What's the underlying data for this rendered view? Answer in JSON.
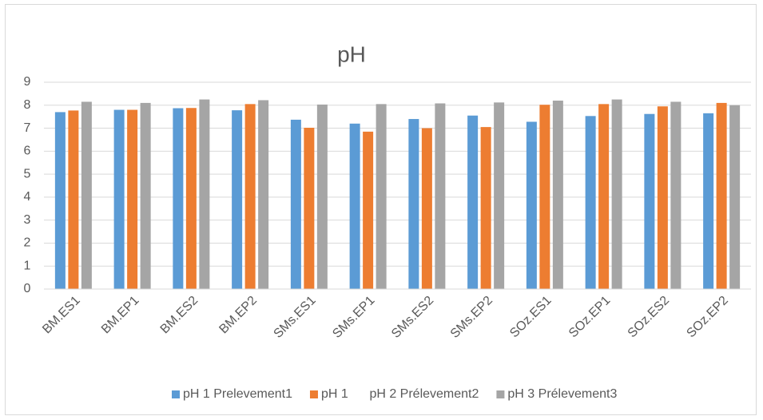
{
  "chart_data": {
    "type": "bar",
    "title": "pH",
    "categories": [
      "BM.ES1",
      "BM.EP1",
      "BM.ES2",
      "BM.EP2",
      "SMs.ES1",
      "SMs.EP1",
      "SMs.ES2",
      "SMs.EP2",
      "SOz.ES1",
      "SOz.EP1",
      "SOz.ES2",
      "SOz.EP2"
    ],
    "series": [
      {
        "name": "pH 1 Prelevement1",
        "color": "#5b9bd5",
        "values": [
          7.7,
          7.8,
          7.87,
          7.78,
          7.37,
          7.2,
          7.4,
          7.55,
          7.28,
          7.53,
          7.62,
          7.65
        ]
      },
      {
        "name": "pH 1      pH 2 Prélevement2",
        "color": "#ed7d31",
        "values": [
          7.77,
          7.8,
          7.88,
          8.05,
          7.02,
          6.85,
          7.0,
          7.05,
          8.02,
          8.05,
          7.95,
          8.1
        ]
      },
      {
        "name": "pH 3 Prélevement3",
        "color": "#a5a5a5",
        "values": [
          8.15,
          8.1,
          8.25,
          8.22,
          8.03,
          8.05,
          8.08,
          8.12,
          8.2,
          8.25,
          8.15,
          8.0
        ]
      }
    ],
    "ylim": [
      0,
      9
    ],
    "yticks": [
      0,
      1,
      2,
      3,
      4,
      5,
      6,
      7,
      8,
      9
    ],
    "grid": true,
    "legend": "bottom"
  }
}
